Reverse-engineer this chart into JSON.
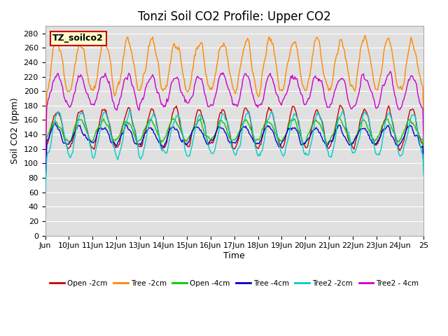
{
  "title": "Tonzi Soil CO2 Profile: Upper CO2",
  "ylabel": "Soil CO2 (ppm)",
  "xlabel": "Time",
  "annotation": "TZ_soilco2",
  "ylim": [
    0,
    290
  ],
  "yticks": [
    0,
    20,
    40,
    60,
    80,
    100,
    120,
    140,
    160,
    180,
    200,
    220,
    240,
    260,
    280
  ],
  "x_labels": [
    "Jun",
    "10Jun",
    "11Jun",
    "12Jun",
    "13Jun",
    "14Jun",
    "15Jun",
    "16Jun",
    "17Jun",
    "18Jun",
    "19Jun",
    "20Jun",
    "21Jun",
    "22Jun",
    "23Jun",
    "24Jun",
    "25"
  ],
  "legend_entries": [
    "Open -2cm",
    "Tree -2cm",
    "Open -4cm",
    "Tree -4cm",
    "Tree2 -2cm",
    "Tree2 - 4cm"
  ],
  "line_colors": [
    "#cc0000",
    "#ff8800",
    "#00cc00",
    "#0000cc",
    "#00cccc",
    "#cc00cc"
  ],
  "bg_color": "#e0e0e0",
  "n_points": 480,
  "title_fontsize": 12,
  "annotation_bg": "#ffffcc",
  "annotation_border": "#cc0000"
}
